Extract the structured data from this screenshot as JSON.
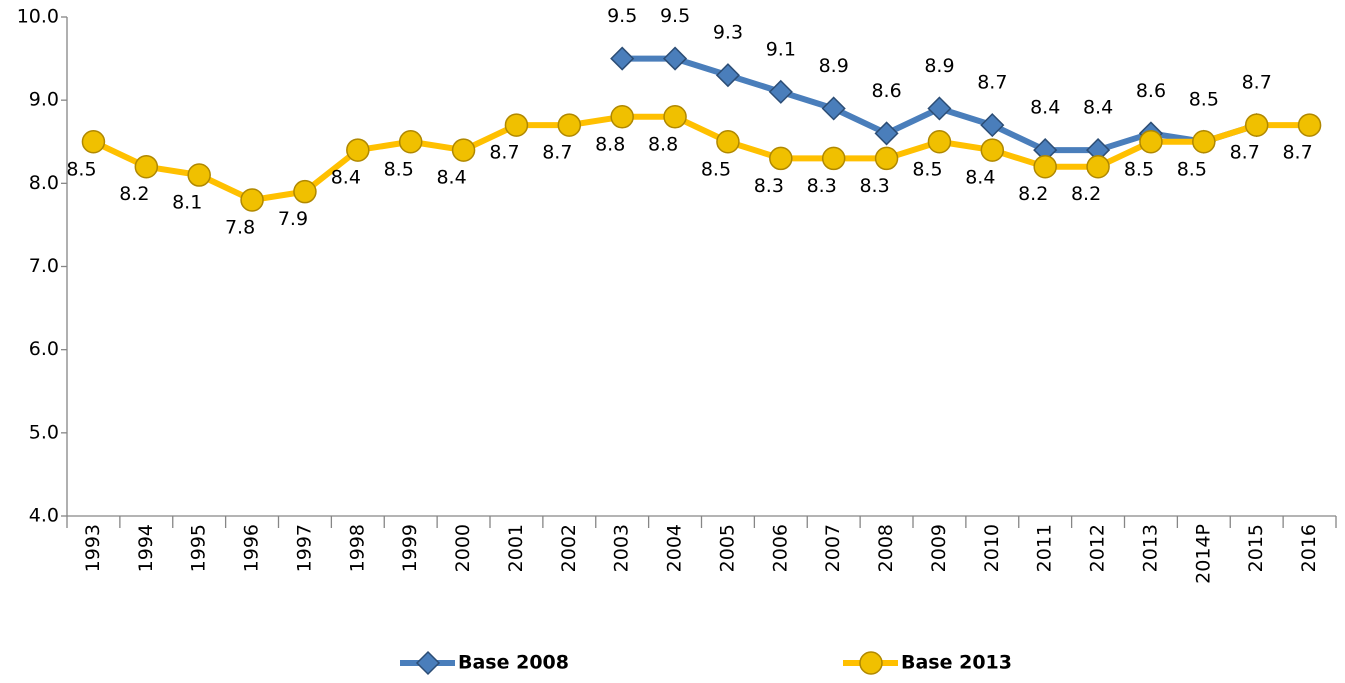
{
  "chart_data": {
    "type": "line",
    "categories": [
      "1993",
      "1994",
      "1995",
      "1996",
      "1997",
      "1998",
      "1999",
      "2000",
      "2001",
      "2002",
      "2003",
      "2004",
      "2005",
      "2006",
      "2007",
      "2008",
      "2009",
      "2010",
      "2011",
      "2012",
      "2013",
      "2014P",
      "2015",
      "2016"
    ],
    "series": [
      {
        "name": "Base 2008",
        "color": "#4a7ebb",
        "marker": "diamond",
        "values": [
          null,
          null,
          null,
          null,
          null,
          null,
          null,
          null,
          null,
          null,
          9.5,
          9.5,
          9.3,
          9.1,
          8.9,
          8.6,
          8.9,
          8.7,
          8.4,
          8.4,
          8.6,
          8.5,
          8.7,
          null
        ]
      },
      {
        "name": "Base 2013",
        "color": "#ffc000",
        "marker": "circle",
        "values": [
          8.5,
          8.2,
          8.1,
          7.8,
          7.9,
          8.4,
          8.5,
          8.4,
          8.7,
          8.7,
          8.8,
          8.8,
          8.5,
          8.3,
          8.3,
          8.3,
          8.5,
          8.4,
          8.2,
          8.2,
          8.5,
          8.5,
          8.7,
          8.7
        ]
      }
    ],
    "ylim": [
      4,
      10
    ],
    "yticks": [
      {
        "value": 4,
        "label": "4.0"
      },
      {
        "value": 5,
        "label": "5.0"
      },
      {
        "value": 6,
        "label": "6.0"
      },
      {
        "value": 7,
        "label": "7.0"
      },
      {
        "value": 8,
        "label": "8.0"
      },
      {
        "value": 9,
        "label": "9.0"
      },
      {
        "value": 10,
        "label": "10.0"
      }
    ],
    "grid": false,
    "legend": "bottom"
  }
}
